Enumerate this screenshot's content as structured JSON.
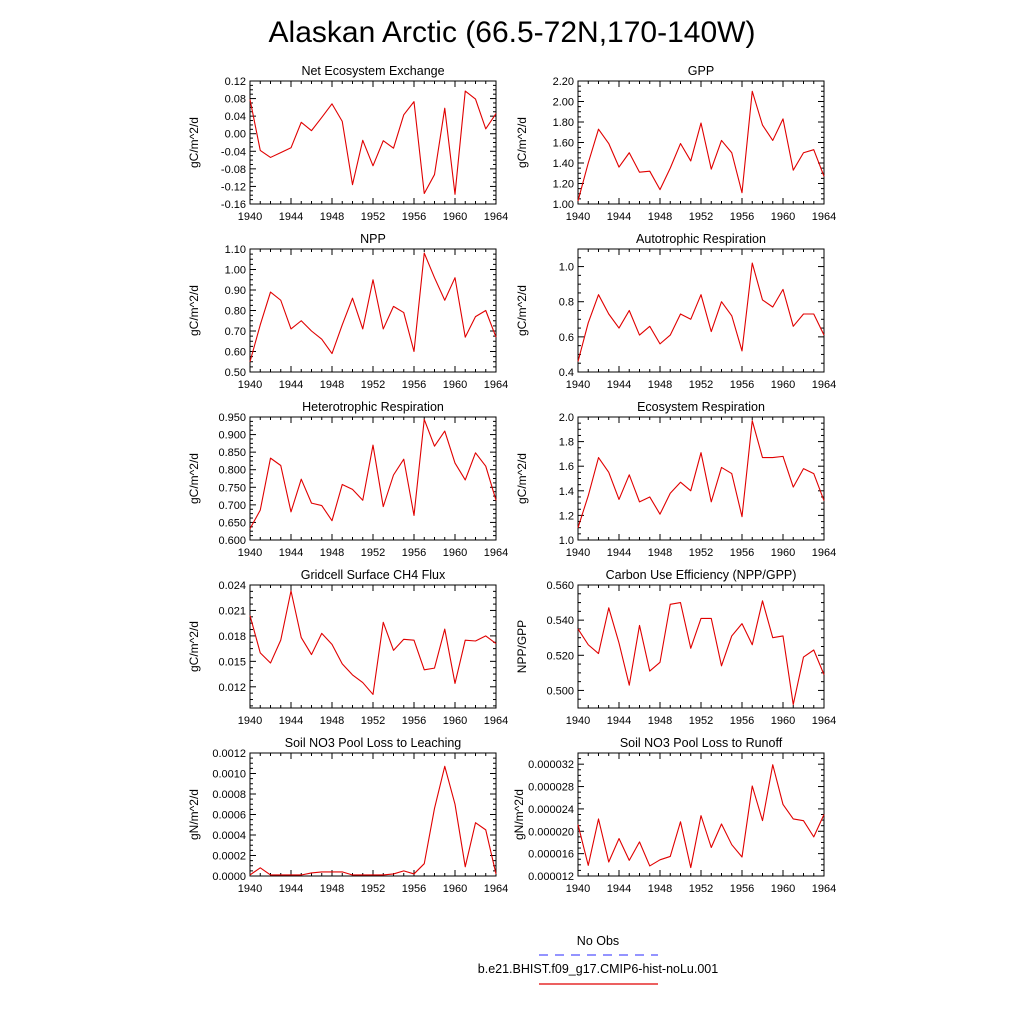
{
  "figure": {
    "title": "Alaskan Arctic (66.5-72N,170-140W)"
  },
  "colors": {
    "model": "#e00000",
    "obs": "#5555ff",
    "axis": "#000000",
    "background": "#ffffff"
  },
  "legend": {
    "obs_label": "No Obs",
    "model_label": "b.e21.BHIST.f09_g17.CMIP6-hist-noLu.001"
  },
  "chart_data": [
    {
      "type": "line",
      "title": "Net Ecosystem Exchange",
      "ylabel": "gC/m^2/d",
      "xlim": [
        1940,
        1964
      ],
      "xticks": [
        "1940",
        "1944",
        "1948",
        "1952",
        "1956",
        "1960",
        "1964"
      ],
      "ylim": [
        -0.16,
        0.12
      ],
      "yticks": [
        "-0.16",
        "-0.12",
        "-0.08",
        "-0.04",
        "0.00",
        "0.04",
        "0.08",
        "0.12"
      ],
      "x": [
        1940,
        1941,
        1942,
        1943,
        1944,
        1945,
        1946,
        1947,
        1948,
        1949,
        1950,
        1951,
        1952,
        1953,
        1954,
        1955,
        1956,
        1957,
        1958,
        1959,
        1960,
        1961,
        1962,
        1963,
        1964
      ],
      "y": [
        0.078,
        -0.038,
        -0.054,
        -0.043,
        -0.032,
        0.026,
        0.007,
        0.037,
        0.068,
        0.028,
        -0.116,
        -0.015,
        -0.073,
        -0.016,
        -0.033,
        0.043,
        0.073,
        -0.136,
        -0.093,
        0.058,
        -0.138,
        0.097,
        0.079,
        0.011,
        0.046
      ]
    },
    {
      "type": "line",
      "title": "GPP",
      "ylabel": "gC/m^2/d",
      "xlim": [
        1940,
        1964
      ],
      "xticks": [
        "1940",
        "1944",
        "1948",
        "1952",
        "1956",
        "1960",
        "1964"
      ],
      "ylim": [
        1.0,
        2.2
      ],
      "yticks": [
        "1.00",
        "1.20",
        "1.40",
        "1.60",
        "1.80",
        "2.00",
        "2.20"
      ],
      "x": [
        1940,
        1941,
        1942,
        1943,
        1944,
        1945,
        1946,
        1947,
        1948,
        1949,
        1950,
        1951,
        1952,
        1953,
        1954,
        1955,
        1956,
        1957,
        1958,
        1959,
        1960,
        1961,
        1962,
        1963,
        1964
      ],
      "y": [
        1.03,
        1.4,
        1.73,
        1.59,
        1.36,
        1.5,
        1.31,
        1.32,
        1.14,
        1.35,
        1.59,
        1.42,
        1.79,
        1.34,
        1.62,
        1.5,
        1.11,
        2.1,
        1.77,
        1.62,
        1.83,
        1.33,
        1.5,
        1.53,
        1.27
      ]
    },
    {
      "type": "line",
      "title": "NPP",
      "ylabel": "gC/m^2/d",
      "xlim": [
        1940,
        1964
      ],
      "xticks": [
        "1940",
        "1944",
        "1948",
        "1952",
        "1956",
        "1960",
        "1964"
      ],
      "ylim": [
        0.5,
        1.1
      ],
      "yticks": [
        "0.50",
        "0.60",
        "0.70",
        "0.80",
        "0.90",
        "1.00",
        "1.10"
      ],
      "x": [
        1940,
        1941,
        1942,
        1943,
        1944,
        1945,
        1946,
        1947,
        1948,
        1949,
        1950,
        1951,
        1952,
        1953,
        1954,
        1955,
        1956,
        1957,
        1958,
        1959,
        1960,
        1961,
        1962,
        1963,
        1964
      ],
      "y": [
        0.55,
        0.73,
        0.89,
        0.85,
        0.71,
        0.75,
        0.7,
        0.66,
        0.59,
        0.73,
        0.86,
        0.71,
        0.95,
        0.71,
        0.82,
        0.79,
        0.6,
        1.08,
        0.96,
        0.85,
        0.96,
        0.67,
        0.77,
        0.8,
        0.67
      ]
    },
    {
      "type": "line",
      "title": "Autotrophic Respiration",
      "ylabel": "gC/m^2/d",
      "xlim": [
        1940,
        1964
      ],
      "xticks": [
        "1940",
        "1944",
        "1948",
        "1952",
        "1956",
        "1960",
        "1964"
      ],
      "ylim": [
        0.4,
        1.1
      ],
      "yticks": [
        "0.4",
        "0.6",
        "0.8",
        "1.0"
      ],
      "x": [
        1940,
        1941,
        1942,
        1943,
        1944,
        1945,
        1946,
        1947,
        1948,
        1949,
        1950,
        1951,
        1952,
        1953,
        1954,
        1955,
        1956,
        1957,
        1958,
        1959,
        1960,
        1961,
        1962,
        1963,
        1964
      ],
      "y": [
        0.46,
        0.68,
        0.84,
        0.73,
        0.65,
        0.75,
        0.61,
        0.66,
        0.56,
        0.61,
        0.73,
        0.7,
        0.84,
        0.63,
        0.8,
        0.72,
        0.52,
        1.02,
        0.81,
        0.77,
        0.87,
        0.66,
        0.73,
        0.73,
        0.61
      ]
    },
    {
      "type": "line",
      "title": "Heterotrophic Respiration",
      "ylabel": "gC/m^2/d",
      "xlim": [
        1940,
        1964
      ],
      "xticks": [
        "1940",
        "1944",
        "1948",
        "1952",
        "1956",
        "1960",
        "1964"
      ],
      "ylim": [
        0.6,
        0.95
      ],
      "yticks": [
        "0.600",
        "0.650",
        "0.700",
        "0.750",
        "0.800",
        "0.850",
        "0.900",
        "0.950"
      ],
      "x": [
        1940,
        1941,
        1942,
        1943,
        1944,
        1945,
        1946,
        1947,
        1948,
        1949,
        1950,
        1951,
        1952,
        1953,
        1954,
        1955,
        1956,
        1957,
        1958,
        1959,
        1960,
        1961,
        1962,
        1963,
        1964
      ],
      "y": [
        0.632,
        0.685,
        0.833,
        0.812,
        0.68,
        0.773,
        0.705,
        0.698,
        0.655,
        0.758,
        0.744,
        0.713,
        0.87,
        0.695,
        0.785,
        0.83,
        0.67,
        0.943,
        0.867,
        0.91,
        0.819,
        0.771,
        0.848,
        0.81,
        0.713
      ]
    },
    {
      "type": "line",
      "title": "Ecosystem Respiration",
      "ylabel": "gC/m^2/d",
      "xlim": [
        1940,
        1964
      ],
      "xticks": [
        "1940",
        "1944",
        "1948",
        "1952",
        "1956",
        "1960",
        "1964"
      ],
      "ylim": [
        1.0,
        2.0
      ],
      "yticks": [
        "1.0",
        "1.2",
        "1.4",
        "1.6",
        "1.8",
        "2.0"
      ],
      "x": [
        1940,
        1941,
        1942,
        1943,
        1944,
        1945,
        1946,
        1947,
        1948,
        1949,
        1950,
        1951,
        1952,
        1953,
        1954,
        1955,
        1956,
        1957,
        1958,
        1959,
        1960,
        1961,
        1962,
        1963,
        1964
      ],
      "y": [
        1.1,
        1.36,
        1.67,
        1.55,
        1.33,
        1.53,
        1.31,
        1.35,
        1.21,
        1.38,
        1.47,
        1.4,
        1.71,
        1.31,
        1.59,
        1.54,
        1.19,
        1.97,
        1.67,
        1.67,
        1.68,
        1.43,
        1.58,
        1.54,
        1.32
      ]
    },
    {
      "type": "line",
      "title": "Gridcell Surface CH4 Flux",
      "ylabel": "gC/m^2/d",
      "xlim": [
        1940,
        1964
      ],
      "xticks": [
        "1940",
        "1944",
        "1948",
        "1952",
        "1956",
        "1960",
        "1964"
      ],
      "ylim": [
        0.0095,
        0.024
      ],
      "yticks": [
        "0.012",
        "0.015",
        "0.018",
        "0.021",
        "0.024"
      ],
      "x": [
        1940,
        1941,
        1942,
        1943,
        1944,
        1945,
        1946,
        1947,
        1948,
        1949,
        1950,
        1951,
        1952,
        1953,
        1954,
        1955,
        1956,
        1957,
        1958,
        1959,
        1960,
        1961,
        1962,
        1963,
        1964
      ],
      "y": [
        0.0204,
        0.016,
        0.0148,
        0.0175,
        0.0233,
        0.0178,
        0.0158,
        0.0183,
        0.017,
        0.0147,
        0.0134,
        0.0125,
        0.0111,
        0.0196,
        0.0163,
        0.0176,
        0.0175,
        0.014,
        0.0142,
        0.0188,
        0.0124,
        0.0175,
        0.0174,
        0.018,
        0.0171
      ]
    },
    {
      "type": "line",
      "title": "Carbon Use Efficiency (NPP/GPP)",
      "ylabel": "NPP/GPP",
      "xlim": [
        1940,
        1964
      ],
      "xticks": [
        "1940",
        "1944",
        "1948",
        "1952",
        "1956",
        "1960",
        "1964"
      ],
      "ylim": [
        0.49,
        0.56
      ],
      "yticks": [
        "0.500",
        "0.520",
        "0.540",
        "0.560"
      ],
      "x": [
        1940,
        1941,
        1942,
        1943,
        1944,
        1945,
        1946,
        1947,
        1948,
        1949,
        1950,
        1951,
        1952,
        1953,
        1954,
        1955,
        1956,
        1957,
        1958,
        1959,
        1960,
        1961,
        1962,
        1963,
        1964
      ],
      "y": [
        0.535,
        0.526,
        0.521,
        0.547,
        0.527,
        0.503,
        0.537,
        0.511,
        0.516,
        0.549,
        0.55,
        0.524,
        0.541,
        0.541,
        0.514,
        0.531,
        0.538,
        0.526,
        0.551,
        0.53,
        0.531,
        0.492,
        0.519,
        0.523,
        0.509
      ]
    },
    {
      "type": "line",
      "title": "Soil NO3 Pool Loss to Leaching",
      "ylabel": "gN/m^2/d",
      "xlim": [
        1940,
        1964
      ],
      "xticks": [
        "1940",
        "1944",
        "1948",
        "1952",
        "1956",
        "1960",
        "1964"
      ],
      "ylim": [
        0.0,
        0.0012
      ],
      "yticks": [
        "0.0000",
        "0.0002",
        "0.0004",
        "0.0006",
        "0.0008",
        "0.0010",
        "0.0012"
      ],
      "x": [
        1940,
        1941,
        1942,
        1943,
        1944,
        1945,
        1946,
        1947,
        1948,
        1949,
        1950,
        1951,
        1952,
        1953,
        1954,
        1955,
        1956,
        1957,
        1958,
        1959,
        1960,
        1961,
        1962,
        1963,
        1964
      ],
      "y": [
        1e-05,
        8e-05,
        1e-05,
        1e-05,
        1e-05,
        1e-05,
        3e-05,
        4e-05,
        4e-05,
        4e-05,
        1e-05,
        1e-05,
        1e-05,
        1e-05,
        2e-05,
        5e-05,
        2e-05,
        0.00012,
        0.00066,
        0.00107,
        0.0007,
        9e-05,
        0.00052,
        0.00045,
        2e-05
      ]
    },
    {
      "type": "line",
      "title": "Soil NO3 Pool Loss to Runoff",
      "ylabel": "gN/m^2/d",
      "xlim": [
        1940,
        1964
      ],
      "xticks": [
        "1940",
        "1944",
        "1948",
        "1952",
        "1956",
        "1960",
        "1964"
      ],
      "ylim": [
        1.2e-05,
        3.4e-05
      ],
      "yticks": [
        "0.000012",
        "0.000016",
        "0.000020",
        "0.000024",
        "0.000028",
        "0.000032"
      ],
      "x": [
        1940,
        1941,
        1942,
        1943,
        1944,
        1945,
        1946,
        1947,
        1948,
        1949,
        1950,
        1951,
        1952,
        1953,
        1954,
        1955,
        1956,
        1957,
        1958,
        1959,
        1960,
        1961,
        1962,
        1963,
        1964
      ],
      "y": [
        2.12e-05,
        1.39e-05,
        2.22e-05,
        1.45e-05,
        1.87e-05,
        1.48e-05,
        1.81e-05,
        1.38e-05,
        1.49e-05,
        1.55e-05,
        2.17e-05,
        1.35e-05,
        2.28e-05,
        1.71e-05,
        2.13e-05,
        1.76e-05,
        1.54e-05,
        2.81e-05,
        2.19e-05,
        3.19e-05,
        2.48e-05,
        2.22e-05,
        2.19e-05,
        1.9e-05,
        2.3e-05
      ]
    }
  ]
}
